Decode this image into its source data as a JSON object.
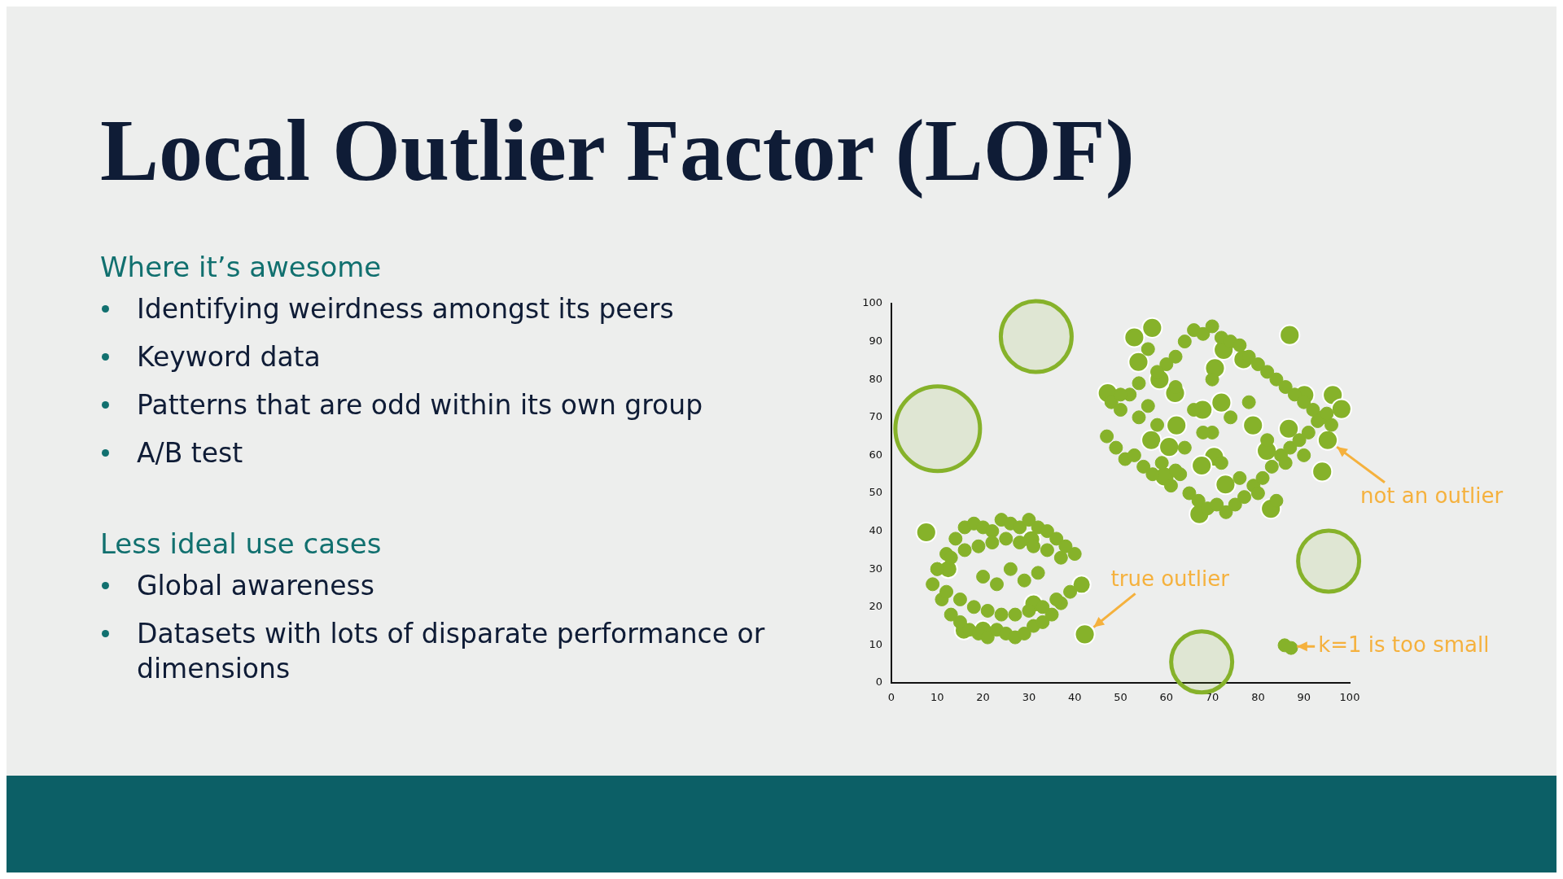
{
  "chart_data": {
    "type": "scatter",
    "title": "Local Outlier Factor (LOF)",
    "annotations": [
      "Where it’s awesome",
      "Identifying weirdness amongst its peers",
      "Keyword data",
      "Patterns that are odd within its own group",
      "A/B test",
      "Less ideal use cases",
      "Global awareness",
      "Datasets with lots of disparate performance or dimensions",
      {
        "text": "true outlier",
        "x": 42.2,
        "y": 12.8
      },
      {
        "text": "not an outlier",
        "x": 95.2,
        "y": 64.0
      },
      {
        "text": "k=1 is too small",
        "x": 86.0,
        "y": 9.6
      }
    ],
    "xlim": [
      0,
      100
    ],
    "ylim": [
      0,
      100
    ],
    "xticks": [
      0,
      10,
      20,
      30,
      40,
      50,
      60,
      70,
      80,
      90,
      100
    ],
    "yticks": [
      0,
      10,
      20,
      30,
      40,
      50,
      60,
      70,
      80,
      90,
      100
    ],
    "grid": false,
    "legend": false,
    "marker": "circle",
    "series": [
      {
        "type": "scatter",
        "color": "#86b22a",
        "x": [
          10,
          12,
          14,
          16,
          18,
          20,
          22,
          24,
          26,
          28,
          30,
          32,
          34,
          36,
          38,
          40,
          9,
          11,
          13,
          15,
          17,
          19,
          21,
          23,
          25,
          27,
          29,
          31,
          33,
          35,
          37,
          39,
          10,
          13,
          16,
          19,
          22,
          25,
          28,
          31,
          34,
          37,
          12,
          15,
          18,
          21,
          24,
          27,
          30,
          33,
          36,
          20,
          23,
          26,
          29,
          32,
          85.8,
          87.2,
          48,
          50,
          52,
          54,
          56,
          58,
          60,
          62,
          64,
          66,
          68,
          70,
          72,
          74,
          76,
          78,
          80,
          82,
          84,
          86,
          88,
          90,
          92,
          94,
          96,
          47,
          49,
          51,
          53,
          55,
          57,
          59,
          61,
          63,
          65,
          67,
          69,
          71,
          73,
          75,
          77,
          79,
          81,
          83,
          85,
          87,
          89,
          91,
          93,
          95,
          50,
          54,
          58,
          62,
          66,
          70,
          74,
          78,
          82,
          86,
          90,
          64,
          68,
          72,
          76,
          80,
          84,
          56,
          62,
          70
        ],
        "values": [
          30,
          34,
          38,
          41,
          42,
          41,
          40,
          43,
          42,
          41,
          43,
          41,
          40,
          38,
          36,
          34,
          26,
          22,
          18,
          16,
          14,
          13,
          12,
          14,
          13,
          12,
          13,
          15,
          16,
          18,
          21,
          24,
          30,
          33,
          35,
          36,
          37,
          38,
          37,
          36,
          35,
          33,
          24,
          22,
          20,
          19,
          18,
          18,
          19,
          20,
          22,
          28,
          26,
          30,
          27,
          29,
          9.9,
          9.2,
          74,
          72,
          76,
          70,
          73,
          68,
          84,
          86,
          90,
          93,
          92,
          94,
          91,
          90,
          89,
          86,
          84,
          82,
          80,
          78,
          76,
          74,
          72,
          70,
          68,
          65,
          62,
          59,
          60,
          57,
          55,
          58,
          52,
          55,
          50,
          48,
          46,
          47,
          45,
          47,
          49,
          52,
          54,
          57,
          60,
          62,
          64,
          66,
          69,
          71,
          76,
          79,
          82,
          78,
          72,
          66,
          70,
          74,
          64,
          58,
          60,
          62,
          66,
          58,
          54,
          50,
          48,
          88,
          56,
          80
        ]
      },
      {
        "type": "bubble",
        "color": "#86b22a",
        "x": [
          31.6,
          10.1,
          95.4,
          67.7,
          7.6,
          42.2,
          53.0,
          56.9,
          86.9,
          53.9,
          58.5,
          72.5,
          76.8,
          70.6,
          61.9,
          47.2,
          72.0,
          90.1,
          96.3,
          98.2,
          67.9,
          62.2,
          78.9,
          86.7,
          95.2,
          56.7,
          60.6,
          81.9,
          70.4,
          67.7,
          59.6,
          94.0,
          72.9,
          82.8,
          67.2,
          30.5,
          41.5,
          31.0,
          15.8,
          20.0,
          12.4
        ],
        "values": [
          91.3,
          67.0,
          32.1,
          5.5,
          39.7,
          12.8,
          91.1,
          93.6,
          91.7,
          84.6,
          80.0,
          87.8,
          85.3,
          83.0,
          76.4,
          76.4,
          73.9,
          75.9,
          75.9,
          72.2,
          72.0,
          67.9,
          67.9,
          67.0,
          64.0,
          64.0,
          62.2,
          61.2,
          59.6,
          57.3,
          54.4,
          55.7,
          52.3,
          45.9,
          44.5,
          37.8,
          25.9,
          20.9,
          13.8,
          14.0,
          30.0
        ],
        "sizes": [
          0.7,
          1,
          0.52,
          0.52,
          0.054,
          0.054,
          0.054,
          0.054,
          0.054,
          0.054,
          0.054,
          0.054,
          0.054,
          0.054,
          0.054,
          0.054,
          0.054,
          0.054,
          0.054,
          0.054,
          0.054,
          0.054,
          0.054,
          0.054,
          0.054,
          0.054,
          0.054,
          0.054,
          0.054,
          0.054,
          0.054,
          0.054,
          0.054,
          0.054,
          0.054,
          0.045,
          0.045,
          0.045,
          0.045,
          0.045,
          0.045
        ]
      }
    ]
  }
}
